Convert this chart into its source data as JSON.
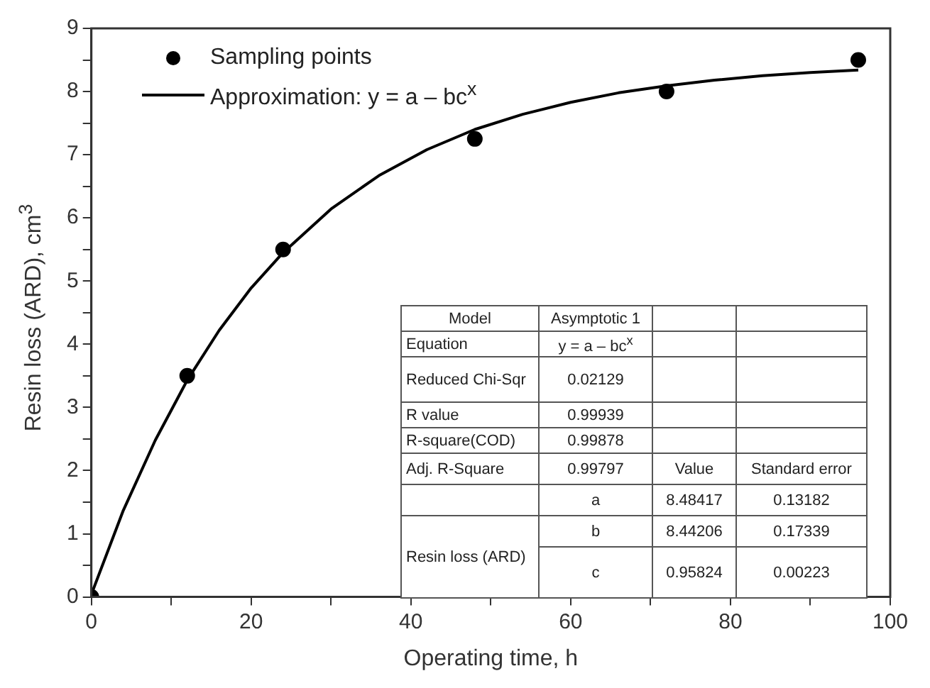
{
  "chart_data": {
    "type": "scatter",
    "xlabel": "Operating time, h",
    "ylabel": "Resin loss (ARD), cm$^{3}$",
    "xlim": [
      0,
      100
    ],
    "xticks": [
      0,
      {
        "value": 10,
        "label": null
      },
      20,
      {
        "value": 30,
        "label": null
      },
      40,
      {
        "value": 50,
        "label": null
      },
      60,
      {
        "value": 70,
        "label": null
      },
      80,
      {
        "value": 90,
        "label": null
      },
      100
    ],
    "ylim": [
      0,
      9
    ],
    "yticks": [
      0,
      {
        "value": 0.5,
        "label": null
      },
      1,
      {
        "value": 1.5,
        "label": null
      },
      2,
      {
        "value": 2.5,
        "label": null
      },
      3,
      {
        "value": 3.5,
        "label": null
      },
      4,
      {
        "value": 4.5,
        "label": null
      },
      5,
      {
        "value": 5.5,
        "label": null
      },
      6,
      {
        "value": 6.5,
        "label": null
      },
      7,
      {
        "value": 7.5,
        "label": null
      },
      8,
      {
        "value": 8.5,
        "label": null
      },
      9
    ],
    "grid": false,
    "legend": "top left",
    "series": [
      {
        "name": "Sampling points",
        "marker": "circle",
        "color": "#000000",
        "x": [
          0,
          12,
          24,
          48,
          72,
          96
        ],
        "values": [
          0,
          3.5,
          5.5,
          7.25,
          8,
          8.5
        ]
      },
      {
        "name": "Approximation: y = a – bc$^{x}$",
        "type": "line",
        "marker": "none",
        "line_style": "solid",
        "color": "#000000",
        "x": [
          0,
          4,
          8,
          12,
          16,
          20,
          24,
          30,
          36,
          42,
          48,
          54,
          60,
          66,
          72,
          78,
          84,
          90,
          96
        ],
        "values": [
          0.04,
          1.37,
          2.48,
          3.43,
          4.22,
          4.89,
          5.45,
          6.14,
          6.67,
          7.08,
          7.4,
          7.64,
          7.83,
          7.98,
          8.09,
          8.18,
          8.25,
          8.3,
          8.34
        ]
      }
    ],
    "annotations": [
      "Model",
      "Asymptotic 1",
      "Equation",
      "y = a – bc$^{x}$",
      "Reduced Chi-Sqr",
      "0.02129",
      "R value",
      "0.99939",
      "R-square(COD)",
      "0.99878",
      "Adj. R-Square",
      "0.99797",
      "Value",
      "Standard error",
      "a",
      "8.48417",
      "0.13182",
      "Resin loss (ARD)",
      "b",
      "8.44206",
      "0.17339",
      "c",
      "0.95824",
      "0.00223"
    ]
  }
}
